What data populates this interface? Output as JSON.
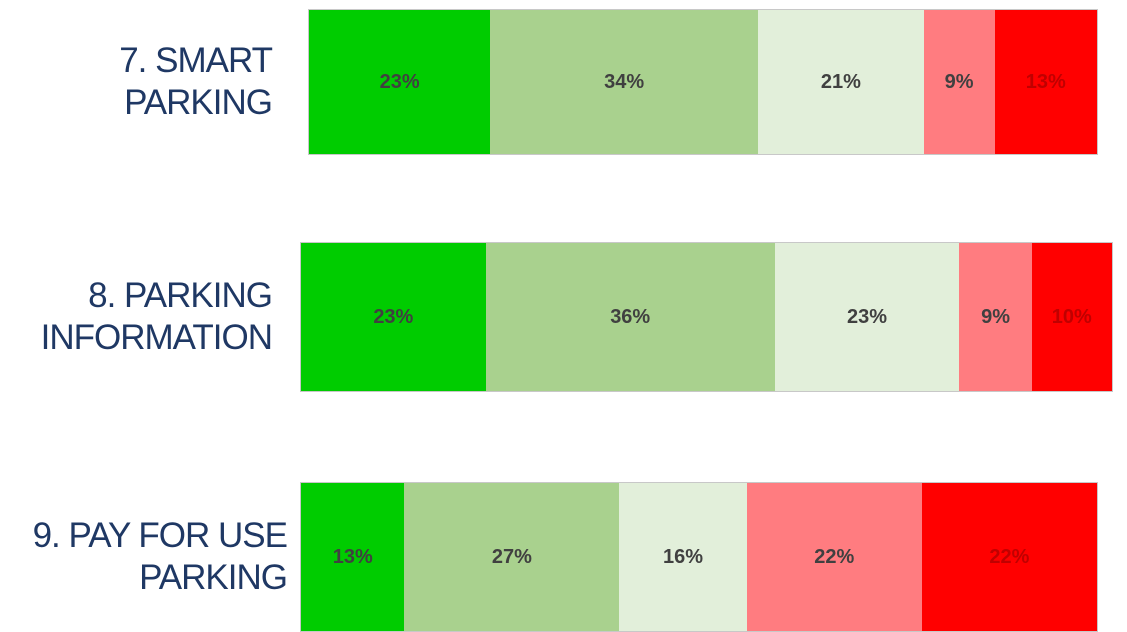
{
  "chart_data": {
    "type": "stacked_bar_horizontal",
    "categories": [
      "7. SMART\nPARKING",
      "8. PARKING\nINFORMATION",
      "9. PAY FOR USE\nPARKING"
    ],
    "series": [
      {
        "color": "#00cc00",
        "values": [
          23,
          23,
          13
        ],
        "value_labels": [
          "23%",
          "23%",
          "13%"
        ]
      },
      {
        "color": "#a9d18e",
        "values": [
          34,
          36,
          27
        ],
        "value_labels": [
          "34%",
          "36%",
          "27%"
        ]
      },
      {
        "color": "#e2efda",
        "values": [
          21,
          23,
          16
        ],
        "value_labels": [
          "21%",
          "23%",
          "16%"
        ]
      },
      {
        "color": "#ff7c80",
        "values": [
          9,
          9,
          22
        ],
        "value_labels": [
          "9%",
          "9%",
          "22%"
        ]
      },
      {
        "color": "#ff0000",
        "values": [
          13,
          10,
          22
        ],
        "value_labels": [
          "13%",
          "10%",
          "22%"
        ]
      }
    ]
  }
}
